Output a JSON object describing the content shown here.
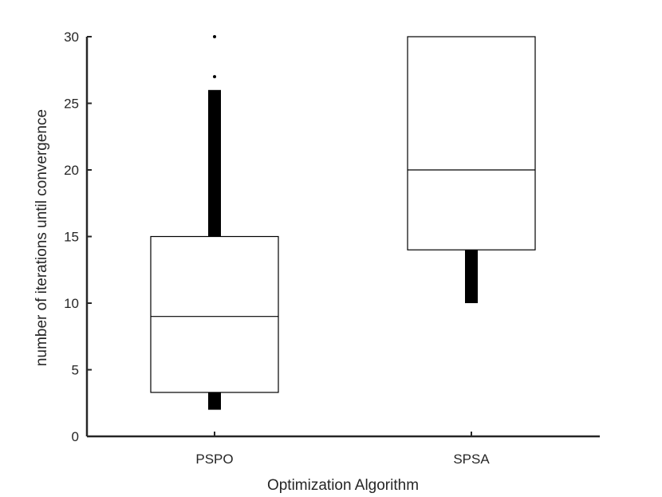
{
  "chart_data": {
    "type": "box",
    "title": "",
    "xlabel": "Optimization Algorithm",
    "ylabel": "number of iterations until convergence",
    "ylim": [
      0,
      30
    ],
    "yticks": [
      0,
      5,
      10,
      15,
      20,
      25,
      30
    ],
    "grid": false,
    "categories": [
      "PSPO",
      "SPSA"
    ],
    "boxes": [
      {
        "category": "PSPO",
        "whisker_low": 2,
        "q1": 3.3,
        "median": 9,
        "q3": 15,
        "whisker_high": 26,
        "outliers": [
          27,
          30
        ]
      },
      {
        "category": "SPSA",
        "whisker_low": 10,
        "q1": 14,
        "median": 20,
        "q3": 30,
        "whisker_high": 30,
        "outliers": []
      }
    ],
    "colors": {
      "axis": "#262626",
      "box_edge": "#000000",
      "whisker": "#000000"
    }
  }
}
